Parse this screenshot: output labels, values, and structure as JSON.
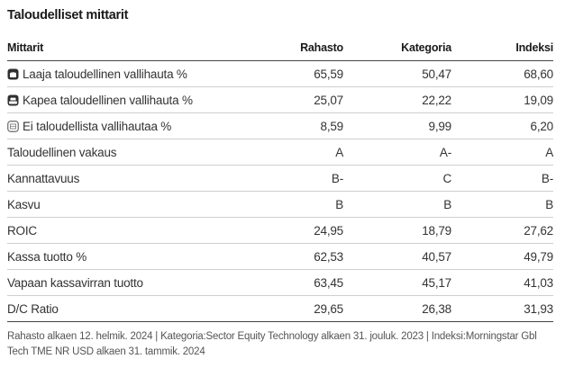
{
  "title": "Taloudelliset mittarit",
  "columns": {
    "name": "Mittarit",
    "fund": "Rahasto",
    "category": "Kategoria",
    "index": "Indeksi"
  },
  "rows": [
    {
      "label": "Laaja taloudellinen vallihauta %",
      "icon": "wide-moat-icon",
      "fund": "65,59",
      "category": "50,47",
      "index": "68,60"
    },
    {
      "label": "Kapea taloudellinen vallihauta %",
      "icon": "narrow-moat-icon",
      "fund": "25,07",
      "category": "22,22",
      "index": "19,09"
    },
    {
      "label": "Ei taloudellista vallihautaa %",
      "icon": "no-moat-icon",
      "fund": "8,59",
      "category": "9,99",
      "index": "6,20"
    },
    {
      "label": "Taloudellinen vakaus",
      "fund": "A",
      "category": "A-",
      "index": "A"
    },
    {
      "label": "Kannattavuus",
      "fund": "B-",
      "category": "C",
      "index": "B-"
    },
    {
      "label": "Kasvu",
      "fund": "B",
      "category": "B",
      "index": "B"
    },
    {
      "label": "ROIC",
      "fund": "24,95",
      "category": "18,79",
      "index": "27,62"
    },
    {
      "label": "Kassa tuotto %",
      "fund": "62,53",
      "category": "40,57",
      "index": "49,79"
    },
    {
      "label": "Vapaan kassavirran tuotto",
      "fund": "63,45",
      "category": "45,17",
      "index": "41,03"
    },
    {
      "label": "D/C Ratio",
      "fund": "29,65",
      "category": "26,38",
      "index": "31,93"
    }
  ],
  "footnote": "Rahasto alkaen 12. helmik. 2024 | Kategoria:Sector Equity Technology alkaen 31. jouluk. 2023 | Indeksi:Morningstar Gbl Tech TME NR USD alkaen 31. tammik. 2024",
  "colors": {
    "icon_dark": "#2f2f2f",
    "icon_light": "#8a8a8a"
  }
}
